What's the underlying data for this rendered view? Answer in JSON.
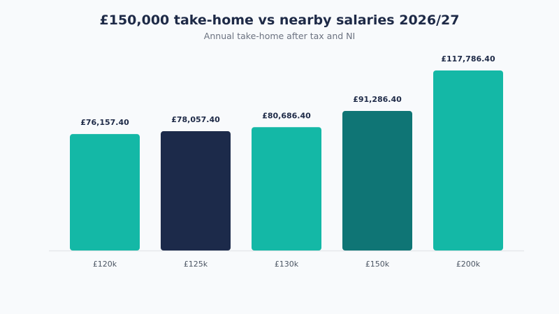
{
  "chart_data": {
    "type": "bar",
    "title": "£150,000 take-home vs nearby salaries 2026/27",
    "subtitle": "Annual take-home after tax and NI",
    "categories": [
      "£120k",
      "£125k",
      "£130k",
      "£150k",
      "£200k"
    ],
    "values": [
      76157.4,
      78057.4,
      80686.4,
      91286.4,
      117786.4
    ],
    "value_labels": [
      "£76,157.40",
      "£78,057.40",
      "£80,686.40",
      "£91,286.40",
      "£117,786.40"
    ],
    "bar_colors": [
      "#14b8a6",
      "#1c2a4a",
      "#14b8a6",
      "#0f7575",
      "#14b8a6"
    ],
    "ylim": [
      0,
      117786.4
    ],
    "grid": false,
    "xlabel": "",
    "ylabel": ""
  }
}
